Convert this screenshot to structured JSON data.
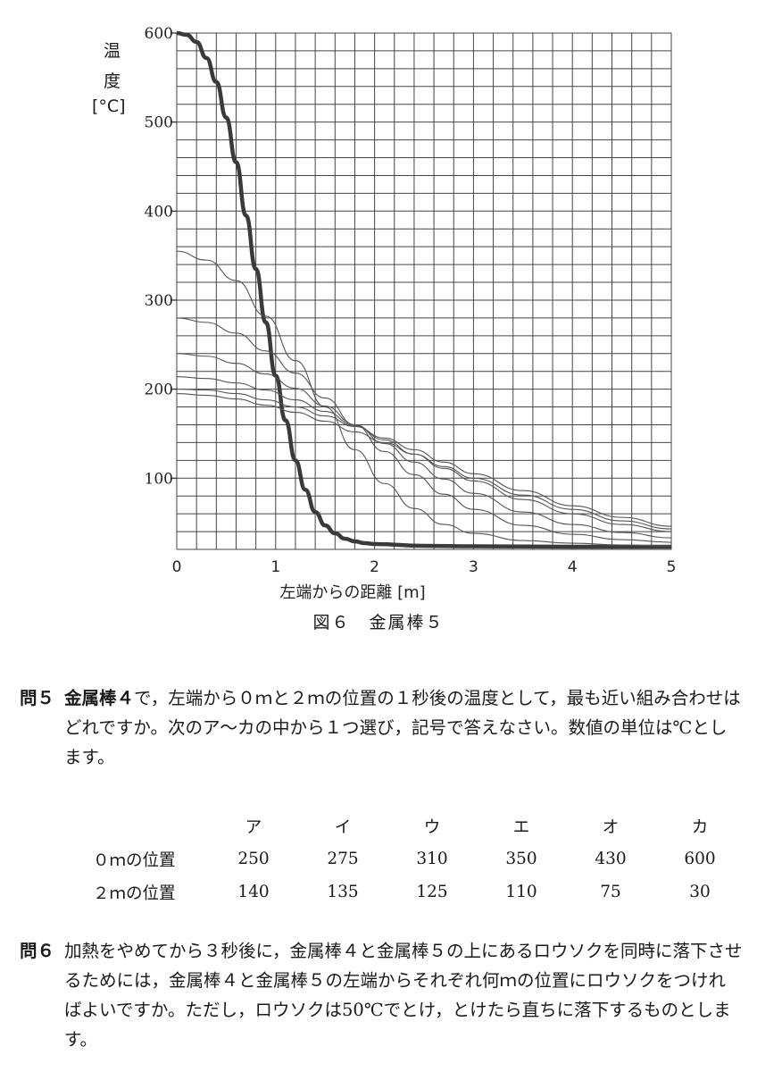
{
  "chart_data": {
    "type": "line",
    "ylabel_chars": [
      "温",
      "度",
      "[°C]"
    ],
    "xlabel": "左端からの距離 [m]",
    "xlim": [
      0,
      5
    ],
    "ylim": [
      20,
      600
    ],
    "xticks": [
      "0",
      "1",
      "2",
      "3",
      "4",
      "5"
    ],
    "yticks": [
      {
        "value": 100,
        "label": "100"
      },
      {
        "value": 200,
        "label": "200"
      },
      {
        "value": 300,
        "label": "300"
      },
      {
        "value": 400,
        "label": "400"
      },
      {
        "value": 500,
        "label": "500"
      },
      {
        "value": 600,
        "label": "600"
      }
    ],
    "grid": true,
    "series": [
      {
        "style": "thick",
        "points": [
          [
            0,
            600
          ],
          [
            0.1,
            598
          ],
          [
            0.2,
            590
          ],
          [
            0.3,
            572
          ],
          [
            0.4,
            545
          ],
          [
            0.5,
            505
          ],
          [
            0.6,
            455
          ],
          [
            0.7,
            395
          ],
          [
            0.8,
            335
          ],
          [
            0.9,
            275
          ],
          [
            1.0,
            215
          ],
          [
            1.1,
            165
          ],
          [
            1.2,
            120
          ],
          [
            1.3,
            87
          ],
          [
            1.4,
            62
          ],
          [
            1.5,
            47
          ],
          [
            1.6,
            38
          ],
          [
            1.7,
            32
          ],
          [
            1.8,
            29
          ],
          [
            1.9,
            27
          ],
          [
            2.0,
            26
          ],
          [
            2.5,
            24
          ],
          [
            3.0,
            23.5
          ],
          [
            4.0,
            23
          ],
          [
            5.0,
            23
          ]
        ]
      },
      {
        "style": "thin",
        "points": [
          [
            0,
            355
          ],
          [
            0.3,
            345
          ],
          [
            0.6,
            322
          ],
          [
            0.9,
            282
          ],
          [
            1.2,
            232
          ],
          [
            1.5,
            180
          ],
          [
            1.8,
            132
          ],
          [
            2.1,
            94
          ],
          [
            2.4,
            66
          ],
          [
            2.7,
            48
          ],
          [
            3.0,
            38
          ],
          [
            3.5,
            30
          ],
          [
            4.0,
            27
          ],
          [
            4.5,
            25
          ],
          [
            5.0,
            24
          ]
        ]
      },
      {
        "style": "thin",
        "points": [
          [
            0,
            280
          ],
          [
            0.3,
            275
          ],
          [
            0.6,
            263
          ],
          [
            0.9,
            243
          ],
          [
            1.2,
            218
          ],
          [
            1.5,
            190
          ],
          [
            1.8,
            160
          ],
          [
            2.1,
            130
          ],
          [
            2.4,
            104
          ],
          [
            2.7,
            82
          ],
          [
            3.0,
            65
          ],
          [
            3.5,
            47
          ],
          [
            4.0,
            37
          ],
          [
            4.5,
            31
          ],
          [
            5.0,
            28
          ]
        ]
      },
      {
        "style": "thin",
        "points": [
          [
            0,
            240
          ],
          [
            0.3,
            237
          ],
          [
            0.6,
            229
          ],
          [
            0.9,
            217
          ],
          [
            1.2,
            201
          ],
          [
            1.5,
            181
          ],
          [
            1.8,
            160
          ],
          [
            2.1,
            139
          ],
          [
            2.4,
            118
          ],
          [
            2.7,
            99
          ],
          [
            3.0,
            83
          ],
          [
            3.5,
            62
          ],
          [
            4.0,
            48
          ],
          [
            4.5,
            39
          ],
          [
            5.0,
            33
          ]
        ]
      },
      {
        "style": "thin",
        "points": [
          [
            0,
            214
          ],
          [
            0.3,
            212
          ],
          [
            0.6,
            207
          ],
          [
            0.9,
            199
          ],
          [
            1.2,
            188
          ],
          [
            1.5,
            175
          ],
          [
            1.8,
            159
          ],
          [
            2.1,
            143
          ],
          [
            2.4,
            127
          ],
          [
            2.7,
            111
          ],
          [
            3.0,
            97
          ],
          [
            3.5,
            76
          ],
          [
            4.0,
            60
          ],
          [
            4.5,
            48
          ],
          [
            5.0,
            40
          ]
        ]
      },
      {
        "style": "thin",
        "points": [
          [
            0,
            200
          ],
          [
            0.3,
            199
          ],
          [
            0.6,
            195
          ],
          [
            0.9,
            188
          ],
          [
            1.2,
            180
          ],
          [
            1.5,
            170
          ],
          [
            1.8,
            158
          ],
          [
            2.1,
            145
          ],
          [
            2.4,
            132
          ],
          [
            2.7,
            118
          ],
          [
            3.0,
            105
          ],
          [
            3.5,
            86
          ],
          [
            4.0,
            69
          ],
          [
            4.5,
            56
          ],
          [
            5.0,
            46
          ]
        ]
      },
      {
        "style": "thin",
        "points": [
          [
            0,
            195
          ],
          [
            0.3,
            193
          ],
          [
            0.6,
            189
          ],
          [
            0.9,
            182
          ],
          [
            1.2,
            174
          ],
          [
            1.5,
            164
          ],
          [
            1.8,
            152
          ],
          [
            2.1,
            140
          ],
          [
            2.4,
            127
          ],
          [
            2.7,
            113
          ],
          [
            3.0,
            100
          ],
          [
            3.5,
            81
          ],
          [
            4.0,
            65
          ],
          [
            4.5,
            52
          ],
          [
            5.0,
            43
          ]
        ]
      }
    ]
  },
  "caption": "図６　金属棒５",
  "q5": {
    "number": "問５",
    "bold_lead": "金属棒４",
    "text": "で，左端から０ｍと２ｍの位置の１秒後の温度として，最も近い組み合わせはどれですか。次のア～カの中から１つ選び，記号で答えなさい。数値の単位は℃とします。"
  },
  "choices": {
    "headers": [
      "ア",
      "イ",
      "ウ",
      "エ",
      "オ",
      "カ"
    ],
    "rows": [
      {
        "label": "０ｍの位置",
        "values": [
          "250",
          "275",
          "310",
          "350",
          "430",
          "600"
        ]
      },
      {
        "label": "２ｍの位置",
        "values": [
          "140",
          "135",
          "125",
          "110",
          "75",
          "30"
        ]
      }
    ]
  },
  "q6": {
    "number": "問６",
    "text": "加熱をやめてから３秒後に，金属棒４と金属棒５の上にあるロウソクを同時に落下させるためには，金属棒４と金属棒５の左端からそれぞれ何ｍの位置にロウソクをつければよいですか。ただし，ロウソクは50℃でとけ，とけたら直ちに落下するものとします。"
  }
}
